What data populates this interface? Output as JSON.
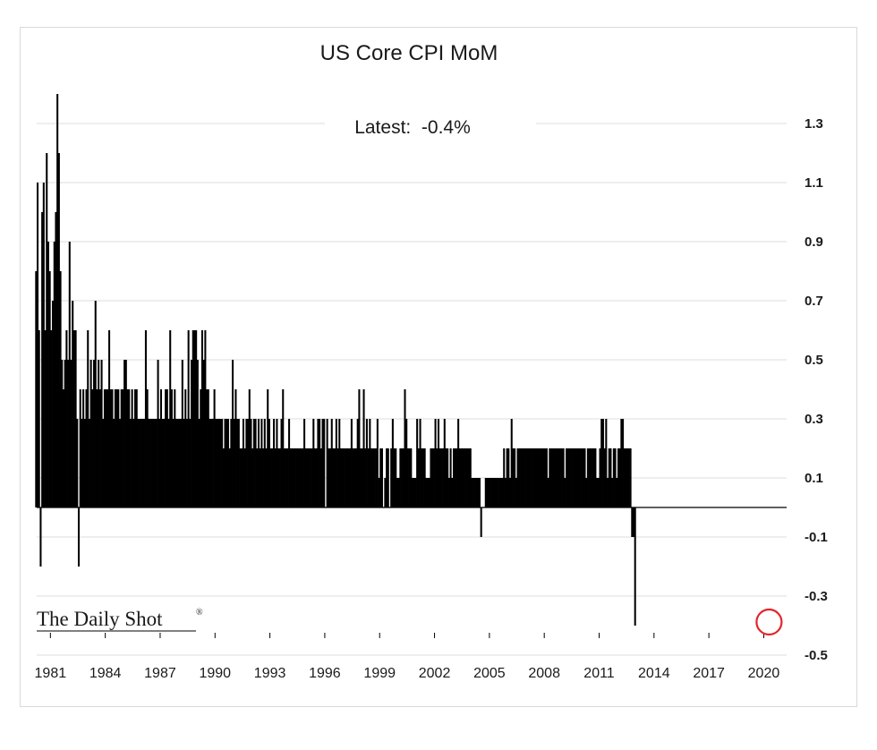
{
  "chart_data": {
    "type": "bar",
    "title": "US Core CPI MoM",
    "annotation": "Latest:  -0.4%",
    "source_logo": "The Daily Shot",
    "ylim": [
      -0.5,
      1.4
    ],
    "y_ticks": [
      "1.3",
      "1.1",
      "0.9",
      "0.7",
      "0.5",
      "0.3",
      "0.1",
      "-0.1",
      "-0.3",
      "-0.5"
    ],
    "y_tick_values": [
      1.3,
      1.1,
      0.9,
      0.7,
      0.5,
      0.3,
      0.1,
      -0.1,
      -0.3,
      -0.5
    ],
    "x_ticks": [
      "1981",
      "1984",
      "1987",
      "1990",
      "1993",
      "1996",
      "1999",
      "2002",
      "2005",
      "2008",
      "2011",
      "2014",
      "2017",
      "2020"
    ],
    "x_tick_years": [
      1981,
      1984,
      1987,
      1990,
      1993,
      1996,
      1999,
      2002,
      2005,
      2008,
      2011,
      2014,
      2017,
      2020
    ],
    "x_range": [
      1980.25,
      2021.25
    ],
    "grid": true,
    "bar_color": "#000000",
    "highlight_color": "#e3262d",
    "highlight_value": -0.4,
    "highlight_date": "2020-04",
    "series": [
      {
        "start": "1980-03",
        "values": [
          0.8,
          1.1,
          0.6,
          -0.2,
          1.0,
          1.1,
          0.6,
          1.2,
          0.9,
          0.8,
          0.6,
          0.7,
          0.9,
          1.0,
          1.4,
          1.2,
          0.8,
          0.5,
          0.4,
          0.5,
          0.6,
          0.5,
          0.9,
          0.5,
          0.7,
          0.6,
          0.6,
          0.3,
          -0.2,
          0.4,
          0.3,
          0.4,
          0.3,
          0.4,
          0.6,
          0.3,
          0.5,
          0.4,
          0.5,
          0.7,
          0.4,
          0.5,
          0.4,
          0.5,
          0.3,
          0.4,
          0.4,
          0.4,
          0.6,
          0.4,
          0.4,
          0.3,
          0.4,
          0.4,
          0.4,
          0.3,
          0.4,
          0.4,
          0.5,
          0.5,
          0.4,
          0.4,
          0.3,
          0.4,
          0.3,
          0.4,
          0.4,
          0.3,
          0.3,
          0.3,
          0.3,
          0.3,
          0.6,
          0.4,
          0.3,
          0.3,
          0.3,
          0.3,
          0.3,
          0.3,
          0.5,
          0.3,
          0.4,
          0.3,
          0.3,
          0.4,
          0.4,
          0.3,
          0.6,
          0.4,
          0.3,
          0.4,
          0.3,
          0.3,
          0.3,
          0.3,
          0.5,
          0.3,
          0.4,
          0.3,
          0.6,
          0.3,
          0.5,
          0.6,
          0.6,
          0.6,
          0.5,
          0.3,
          0.4,
          0.6,
          0.5,
          0.6,
          0.4,
          0.4,
          0.3,
          0.3,
          0.3,
          0.4,
          0.3,
          0.3,
          0.3,
          0.3,
          0.3,
          0.2,
          0.3,
          0.3,
          0.3,
          0.2,
          0.3,
          0.5,
          0.3,
          0.4,
          0.3,
          0.3,
          0.2,
          0.2,
          0.3,
          0.2,
          0.3,
          0.3,
          0.4,
          0.3,
          0.2,
          0.3,
          0.3,
          0.2,
          0.3,
          0.2,
          0.3,
          0.2,
          0.3,
          0.2,
          0.4,
          0.3,
          0.2,
          0.2,
          0.3,
          0.2,
          0.3,
          0.2,
          0.2,
          0.3,
          0.4,
          0.2,
          0.2,
          0.2,
          0.3,
          0.2,
          0.2,
          0.2,
          0.2,
          0.2,
          0.2,
          0.2,
          0.2,
          0.2,
          0.3,
          0.2,
          0.2,
          0.2,
          0.2,
          0.2,
          0.3,
          0.2,
          0.2,
          0.3,
          0.3,
          0.2,
          0.3,
          0.3,
          0.0,
          0.3,
          0.2,
          0.2,
          0.3,
          0.2,
          0.2,
          0.3,
          0.2,
          0.3,
          0.2,
          0.2,
          0.2,
          0.2,
          0.2,
          0.2,
          0.2,
          0.3,
          0.2,
          0.2,
          0.2,
          0.3,
          0.4,
          0.2,
          0.2,
          0.4,
          0.2,
          0.3,
          0.2,
          0.3,
          0.2,
          0.2,
          0.2,
          0.2,
          0.3,
          0.1,
          0.2,
          0.2,
          0.0,
          0.1,
          0.2,
          0.2,
          0.0,
          0.2,
          0.3,
          0.2,
          0.2,
          0.1,
          0.1,
          0.2,
          0.2,
          0.2,
          0.4,
          0.3,
          0.2,
          0.2,
          0.2,
          0.1,
          0.1,
          0.1,
          0.3,
          0.2,
          0.3,
          0.2,
          0.2,
          0.2,
          0.1,
          0.1,
          0.1,
          0.2,
          0.2,
          0.2,
          0.3,
          0.2,
          0.3,
          0.2,
          0.2,
          0.2,
          0.3,
          0.2,
          0.2,
          0.1,
          0.2,
          0.1,
          0.2,
          0.2,
          0.2,
          0.3,
          0.2,
          0.2,
          0.2,
          0.2,
          0.2,
          0.2,
          0.2,
          0.2,
          0.1,
          0.1,
          0.1,
          0.1,
          0.1,
          0.1,
          -0.1,
          0.0,
          0.0,
          0.1,
          0.1,
          0.1,
          0.1,
          0.1,
          0.1,
          0.1,
          0.1,
          0.1,
          0.1,
          0.1,
          0.1,
          0.2,
          0.1,
          0.2,
          0.2,
          0.1,
          0.3,
          0.2,
          0.2,
          0.1,
          0.2,
          0.2,
          0.2,
          0.2,
          0.2,
          0.2,
          0.2,
          0.2,
          0.2,
          0.2,
          0.2,
          0.2,
          0.2,
          0.2,
          0.2,
          0.2,
          0.2,
          0.2,
          0.2,
          0.2,
          0.1,
          0.2,
          0.2,
          0.2,
          0.2,
          0.2,
          0.2,
          0.2,
          0.2,
          0.2,
          0.2,
          0.1,
          0.2,
          0.2,
          0.2,
          0.2,
          0.2,
          0.2,
          0.2,
          0.2,
          0.2,
          0.2,
          0.2,
          0.2,
          0.2,
          0.1,
          0.2,
          0.2,
          0.2,
          0.2,
          0.2,
          0.2,
          0.1,
          0.1,
          0.2,
          0.3,
          0.3,
          0.2,
          0.3,
          0.1,
          0.2,
          0.2,
          0.1,
          0.2,
          0.2,
          0.1,
          0.2,
          0.2,
          0.3,
          0.3,
          0.2,
          0.2,
          0.2,
          0.2,
          0.2,
          -0.1,
          -0.1,
          -0.4
        ]
      }
    ]
  }
}
